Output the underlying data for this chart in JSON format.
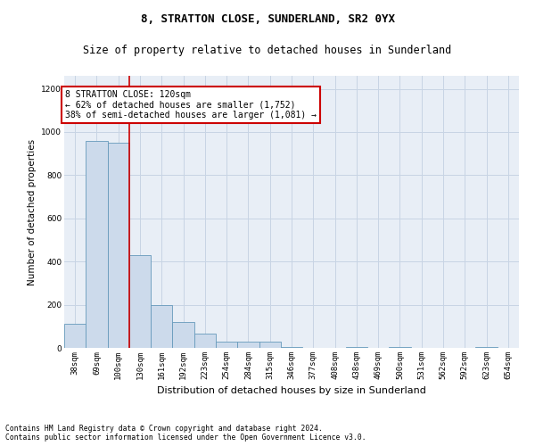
{
  "title1": "8, STRATTON CLOSE, SUNDERLAND, SR2 0YX",
  "title2": "Size of property relative to detached houses in Sunderland",
  "xlabel": "Distribution of detached houses by size in Sunderland",
  "ylabel": "Number of detached properties",
  "categories": [
    "38sqm",
    "69sqm",
    "100sqm",
    "130sqm",
    "161sqm",
    "192sqm",
    "223sqm",
    "254sqm",
    "284sqm",
    "315sqm",
    "346sqm",
    "377sqm",
    "408sqm",
    "438sqm",
    "469sqm",
    "500sqm",
    "531sqm",
    "562sqm",
    "592sqm",
    "623sqm",
    "654sqm"
  ],
  "values": [
    110,
    960,
    950,
    430,
    200,
    120,
    65,
    30,
    30,
    30,
    5,
    0,
    0,
    5,
    0,
    5,
    0,
    0,
    0,
    5,
    0
  ],
  "bar_color": "#ccdaeb",
  "bar_edge_color": "#6699bb",
  "grid_color": "#c8d4e4",
  "bg_color": "#e8eef6",
  "annotation_box_text": "8 STRATTON CLOSE: 120sqm\n← 62% of detached houses are smaller (1,752)\n38% of semi-detached houses are larger (1,081) →",
  "annotation_box_color": "#ffffff",
  "annotation_box_edge_color": "#cc0000",
  "vline_x_idx": 2.5,
  "vline_color": "#cc0000",
  "footnote": "Contains HM Land Registry data © Crown copyright and database right 2024.\nContains public sector information licensed under the Open Government Licence v3.0.",
  "ylim": [
    0,
    1260
  ],
  "yticks": [
    0,
    200,
    400,
    600,
    800,
    1000,
    1200
  ],
  "title1_fontsize": 9,
  "title2_fontsize": 8.5,
  "xlabel_fontsize": 8,
  "ylabel_fontsize": 7.5,
  "tick_fontsize": 6.5,
  "annot_fontsize": 7,
  "footnote_fontsize": 5.8
}
